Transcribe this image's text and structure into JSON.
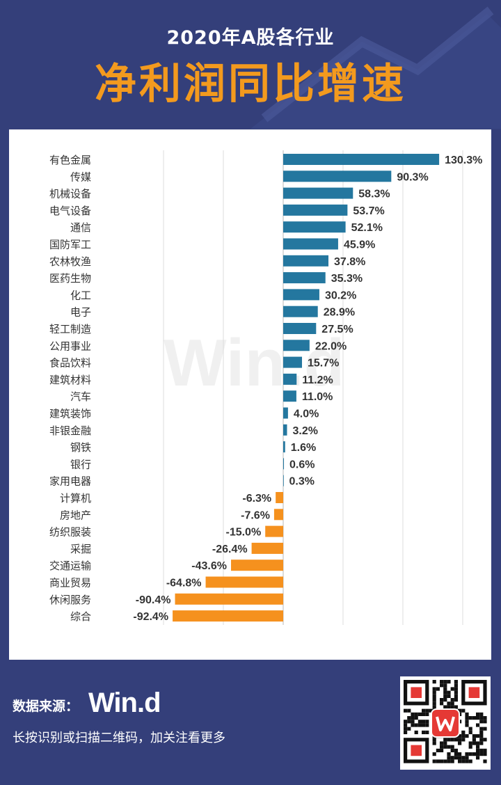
{
  "header": {
    "subtitle": "2020年A股各行业",
    "title": "净利润同比增速"
  },
  "footer": {
    "source_label": "数据来源：",
    "source_brand": "Win.d",
    "note": "长按识别或扫描二维码，加关注看更多"
  },
  "watermark": "Win.d",
  "colors": {
    "positive": "#24779f",
    "negative": "#f5911e",
    "background": "#343f7a",
    "title_accent": "#f39a1e"
  },
  "chart_data": {
    "type": "bar",
    "orientation": "horizontal",
    "unit": "%",
    "title": "净利润同比增速",
    "xlabel": "",
    "ylabel": "",
    "xlim": [
      -100,
      150
    ],
    "grid": true,
    "categories": [
      "有色金属",
      "传媒",
      "机械设备",
      "电气设备",
      "通信",
      "国防军工",
      "农林牧渔",
      "医药生物",
      "化工",
      "电子",
      "轻工制造",
      "公用事业",
      "食品饮料",
      "建筑材料",
      "汽车",
      "建筑装饰",
      "非银金融",
      "钢铁",
      "银行",
      "家用电器",
      "计算机",
      "房地产",
      "纺织服装",
      "采掘",
      "交通运输",
      "商业贸易",
      "休闲服务",
      "综合"
    ],
    "values": [
      130.3,
      90.3,
      58.3,
      53.7,
      52.1,
      45.9,
      37.8,
      35.3,
      30.2,
      28.9,
      27.5,
      22.0,
      15.7,
      11.2,
      11.0,
      4.0,
      3.2,
      1.6,
      0.6,
      0.3,
      -6.3,
      -7.6,
      -15.0,
      -26.4,
      -43.6,
      -64.8,
      -90.4,
      -92.4
    ],
    "labels": [
      "130.3%",
      "90.3%",
      "58.3%",
      "53.7%",
      "52.1%",
      "45.9%",
      "37.8%",
      "35.3%",
      "30.2%",
      "28.9%",
      "27.5%",
      "22.0%",
      "15.7%",
      "11.2%",
      "11.0%",
      "4.0%",
      "3.2%",
      "1.6%",
      "0.6%",
      "0.3%",
      "-6.3%",
      "-7.6%",
      "-15.0%",
      "-26.4%",
      "-43.6%",
      "-64.8%",
      "-90.4%",
      "-92.4%"
    ]
  }
}
